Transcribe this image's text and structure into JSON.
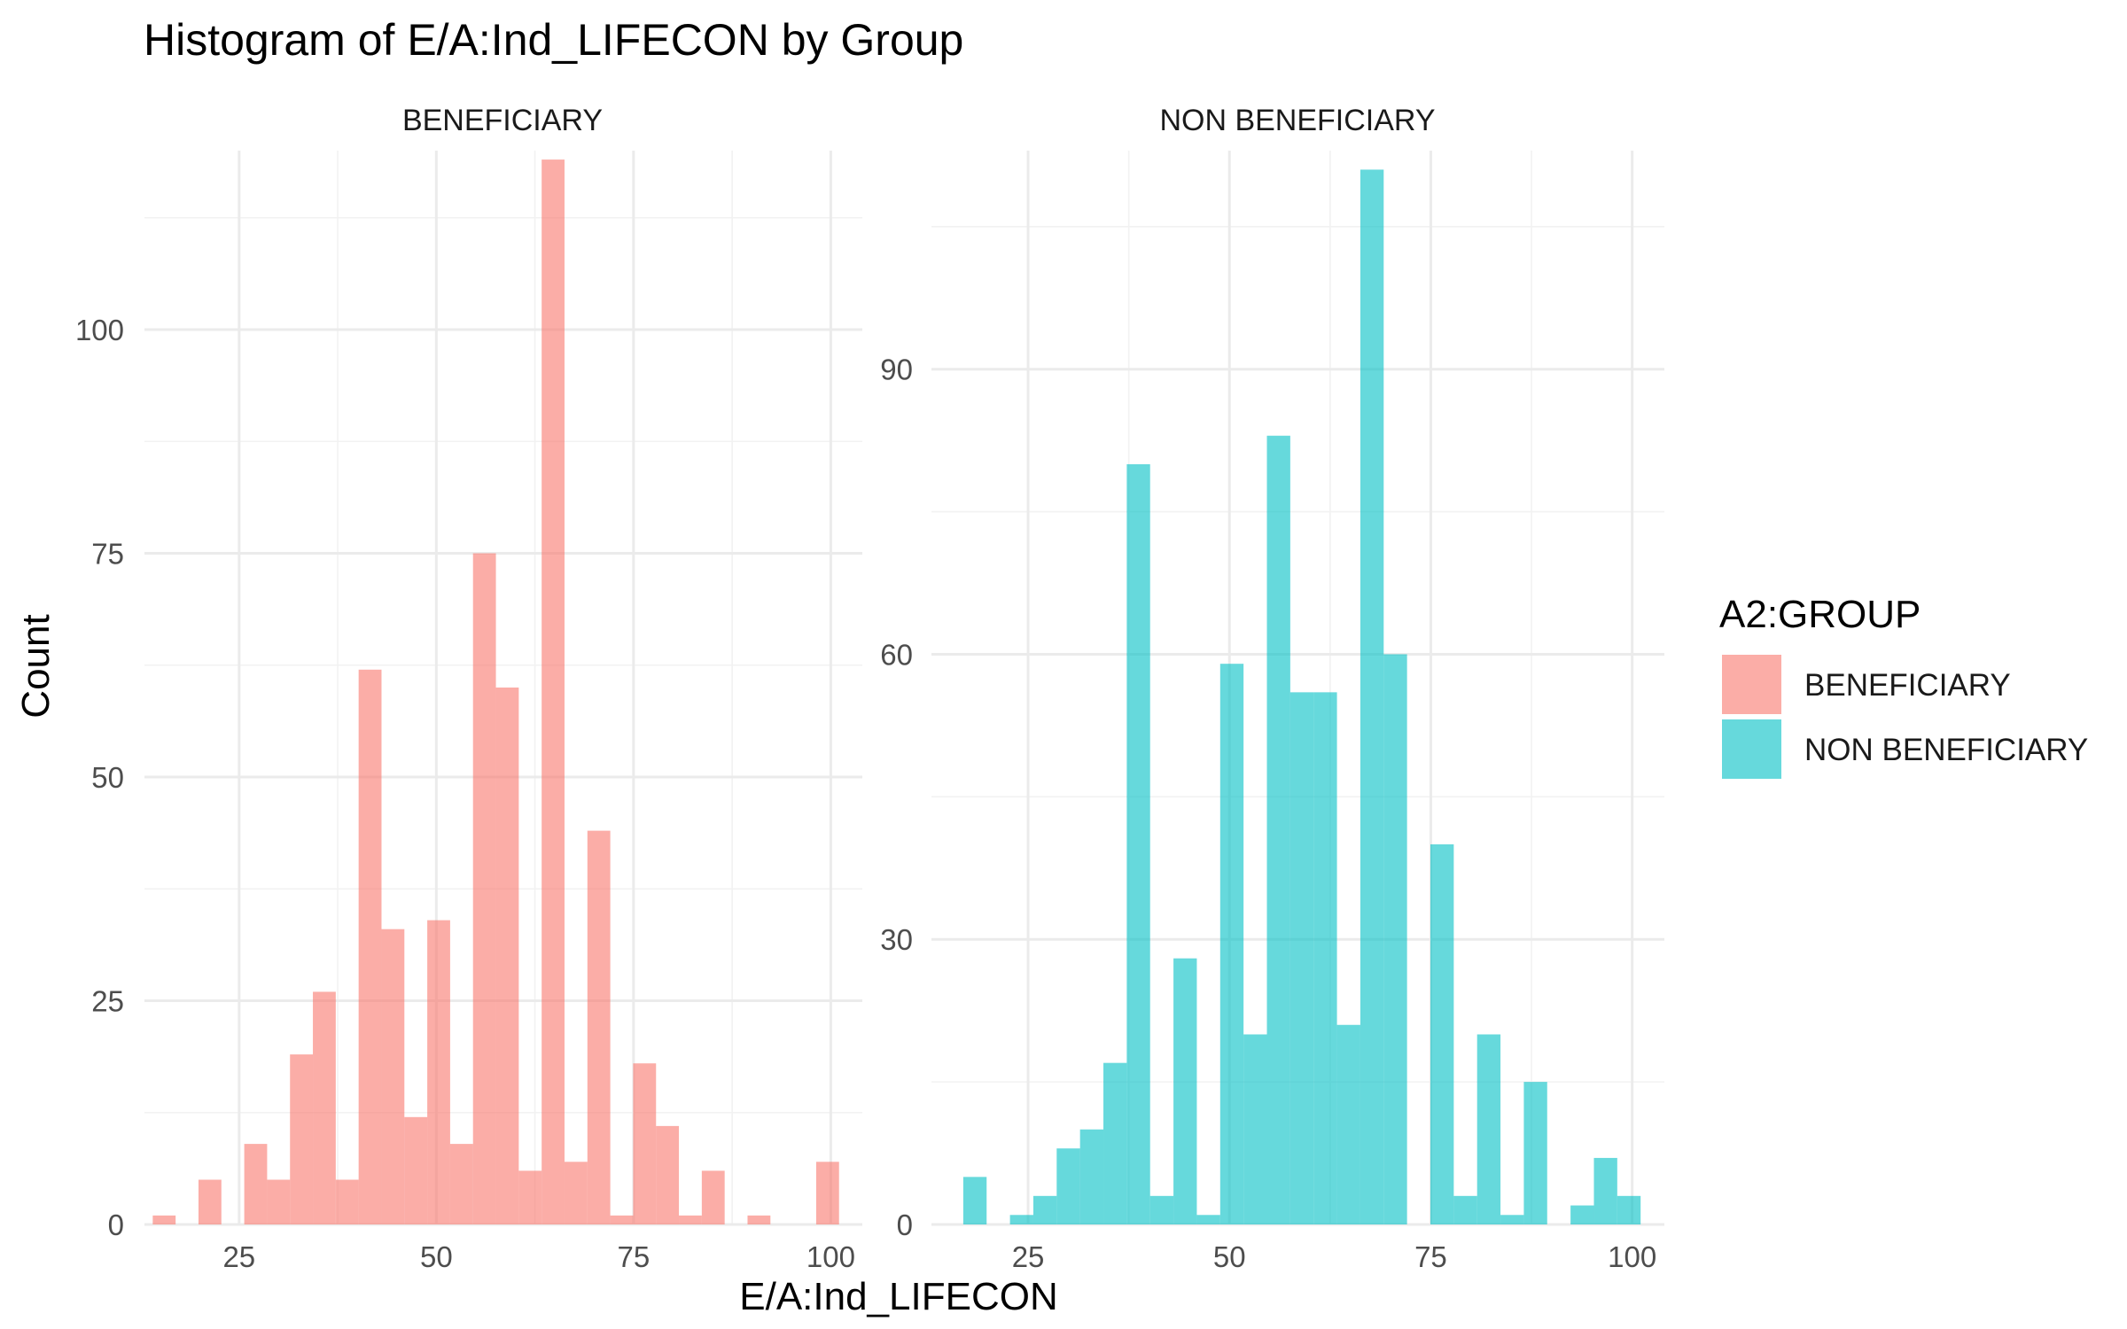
{
  "chart_data": {
    "type": "bar",
    "title": "Histogram of E/A:Ind_LIFECON by Group",
    "xlabel": "E/A:Ind_LIFECON",
    "ylabel": "Count",
    "bin_width": 2.9,
    "legend": {
      "title": "A2:GROUP",
      "placement": "right",
      "entries": [
        {
          "label": "BENEFICIARY",
          "color": "#F8766D"
        },
        {
          "label": "NON BENEFICIARY",
          "color": "#00BFC4"
        }
      ]
    },
    "panels": [
      {
        "strip": "BENEFICIARY",
        "color": "#F8766D",
        "xlim": [
          13,
          104
        ],
        "ylim": [
          0,
          120
        ],
        "x_ticks": [
          25,
          50,
          75,
          100
        ],
        "x_tick_labels": [
          "25",
          "50",
          "75",
          "100"
        ],
        "y_ticks": [
          0,
          25,
          50,
          75,
          100
        ],
        "y_tick_labels": [
          "0",
          "25",
          "50",
          "75",
          "100"
        ],
        "bin_centers": [
          15.5,
          18.4,
          21.3,
          24.2,
          27.1,
          30.0,
          32.9,
          35.8,
          38.7,
          41.6,
          44.5,
          47.4,
          50.3,
          53.2,
          56.1,
          59.0,
          61.9,
          64.8,
          67.7,
          70.6,
          73.5,
          76.4,
          79.3,
          82.2,
          85.1,
          88.0,
          90.9,
          93.8,
          96.7,
          99.6
        ],
        "counts": [
          1,
          0,
          5,
          0,
          9,
          5,
          19,
          26,
          5,
          62,
          33,
          12,
          34,
          9,
          75,
          60,
          6,
          119,
          7,
          44,
          1,
          18,
          11,
          1,
          6,
          0,
          1,
          0,
          0,
          7
        ]
      },
      {
        "strip": "NON BENEFICIARY",
        "color": "#00BFC4",
        "xlim": [
          13,
          104
        ],
        "ylim": [
          0,
          113
        ],
        "x_ticks": [
          25,
          50,
          75,
          100
        ],
        "x_tick_labels": [
          "25",
          "50",
          "75",
          "100"
        ],
        "y_ticks": [
          0,
          30,
          60,
          90
        ],
        "y_tick_labels": [
          "0",
          "30",
          "60",
          "90"
        ],
        "bin_centers": [
          18.4,
          21.3,
          24.2,
          27.1,
          30.0,
          32.9,
          35.8,
          38.7,
          41.6,
          44.5,
          47.4,
          50.3,
          53.2,
          56.1,
          59.0,
          61.9,
          64.8,
          67.7,
          70.6,
          73.5,
          76.4,
          79.3,
          82.2,
          85.1,
          88.0,
          90.9,
          93.8,
          96.7,
          99.6
        ],
        "counts": [
          5,
          0,
          1,
          3,
          8,
          10,
          17,
          80,
          3,
          28,
          1,
          59,
          20,
          83,
          56,
          56,
          21,
          111,
          60,
          0,
          40,
          3,
          20,
          1,
          15,
          0,
          2,
          7,
          3
        ]
      }
    ]
  }
}
